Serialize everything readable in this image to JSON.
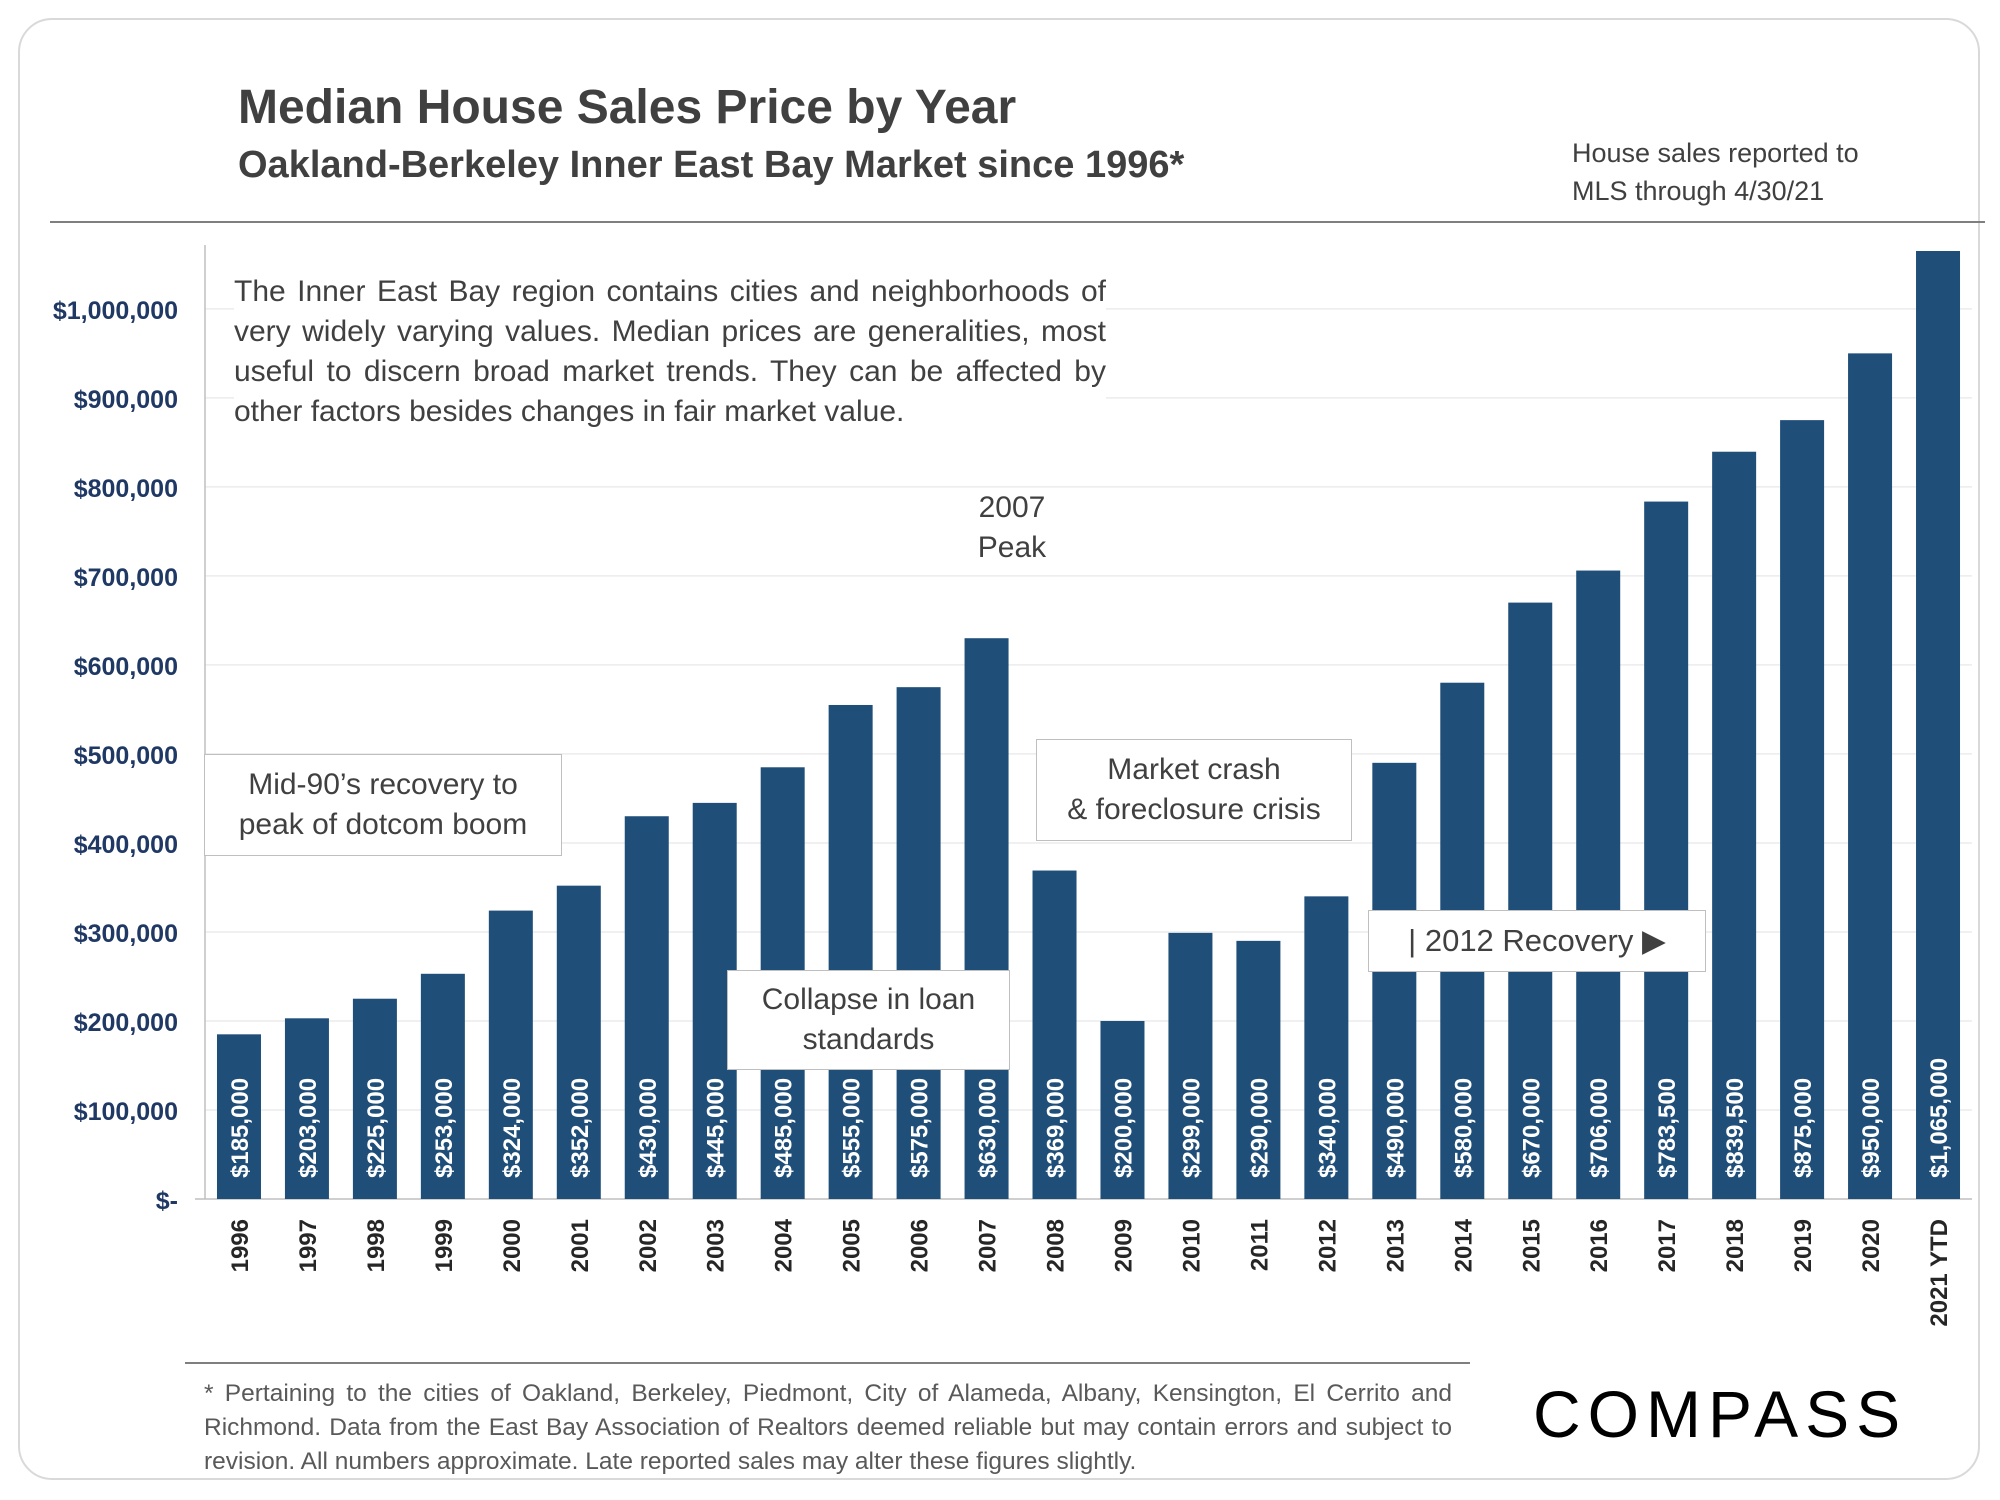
{
  "header": {
    "title": "Median House Sales Price by Year",
    "subtitle": "Oakland-Berkeley Inner East Bay Market since 1996*",
    "note_line1": "House sales reported to",
    "note_line2": "MLS through 4/30/21"
  },
  "annotations": {
    "description": "The Inner East Bay region contains cities and neighborhoods of very widely varying values. Median prices are generalities, most useful to discern broad market trends. They can be affected by other factors besides changes in fair market value.",
    "peak_line1": "2007",
    "peak_line2": "Peak",
    "dotcom_line1": "Mid-90’s recovery to",
    "dotcom_line2": "peak of dotcom boom",
    "collapse_line1": "Collapse in loan",
    "collapse_line2": "standards",
    "crash_line1": "Market crash",
    "crash_line2": "& foreclosure crisis",
    "recovery": "| 2012 Recovery ▶"
  },
  "footer": {
    "footnote": "* Pertaining to the cities of Oakland, Berkeley, Piedmont, City of Alameda, Albany, Kensington, El Cerrito and Richmond. Data from the East Bay Association of Realtors deemed reliable but may contain errors and subject to revision. All numbers approximate. Late reported sales may alter these figures slightly.",
    "logo": "COMPASS"
  },
  "colors": {
    "bar": "#1f4e79",
    "axis_label": "#1f3864",
    "grid": "#ececec"
  },
  "chart_data": {
    "type": "bar",
    "categories": [
      "1996",
      "1997",
      "1998",
      "1999",
      "2000",
      "2001",
      "2002",
      "2003",
      "2004",
      "2005",
      "2006",
      "2007",
      "2008",
      "2009",
      "2010",
      "2011",
      "2012",
      "2013",
      "2014",
      "2015",
      "2016",
      "2017",
      "2018",
      "2019",
      "2020",
      "2021 YTD"
    ],
    "values": [
      185000,
      203000,
      225000,
      253000,
      324000,
      352000,
      430000,
      445000,
      485000,
      555000,
      575000,
      630000,
      369000,
      200000,
      299000,
      290000,
      340000,
      490000,
      580000,
      670000,
      706000,
      783500,
      839500,
      875000,
      950000,
      1065000
    ],
    "value_labels": [
      "$185,000",
      "$203,000",
      "$225,000",
      "$253,000",
      "$324,000",
      "$352,000",
      "$430,000",
      "$445,000",
      "$485,000",
      "$555,000",
      "$575,000",
      "$630,000",
      "$369,000",
      "$200,000",
      "$299,000",
      "$290,000",
      "$340,000",
      "$490,000",
      "$580,000",
      "$670,000",
      "$706,000",
      "$783,500",
      "$839,500",
      "$875,000",
      "$950,000",
      "$1,065,000"
    ],
    "yticks": [
      0,
      100000,
      200000,
      300000,
      400000,
      500000,
      600000,
      700000,
      800000,
      900000,
      1000000
    ],
    "ytick_labels": [
      "$-",
      "$100,000",
      "$200,000",
      "$300,000",
      "$400,000",
      "$500,000",
      "$600,000",
      "$700,000",
      "$800,000",
      "$900,000",
      "$1,000,000"
    ],
    "ylim": [
      0,
      1065000
    ],
    "grid": true,
    "legend": "none"
  }
}
